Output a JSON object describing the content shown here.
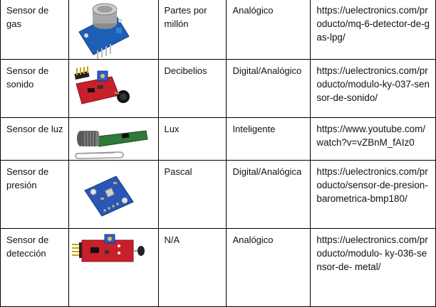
{
  "rows": [
    {
      "name": "Sensor de gas",
      "image": "gas-sensor-mq6-module",
      "unit": "Partes por millón",
      "type": "Analógico",
      "link": "https://uelectronics.com/producto/mq-6-detector-de-gas-lpg/"
    },
    {
      "name": "Sensor de sonido",
      "image": "sound-sensor-ky037-module",
      "unit": "Decibelios",
      "type": "Digital/Analógico",
      "link": "https://uelectronics.com/producto/modulo-ky-037-sensor-de-sonido/"
    },
    {
      "name": "Sensor de luz",
      "image": "light-sensor-module",
      "unit": "Lux",
      "type": "Inteligente",
      "link": "https://www.youtube.com/watch?v=vZBnM_fAIz0"
    },
    {
      "name": "Sensor de presión",
      "image": "pressure-sensor-bmp180-module",
      "unit": "Pascal",
      "type": "Digital/Analógica",
      "link": "https://uelectronics.com/producto/sensor-de-presion-barometrica-bmp180/"
    },
    {
      "name": "Sensor de detección",
      "image": "detection-sensor-ky036-module",
      "unit": "N/A",
      "type": "Analógico",
      "link": "https://uelectronics.com/producto/modulo- ky-036-sensor-de- metal/"
    }
  ]
}
